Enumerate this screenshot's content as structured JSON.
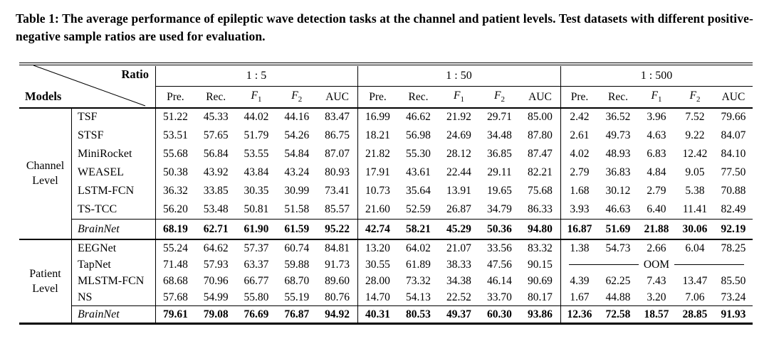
{
  "caption": "Table 1: The average performance of epileptic wave detection tasks at the channel and patient levels. Test datasets with different positive-negative sample ratios are used for evaluation.",
  "colors": {
    "text": "#000000",
    "background": "#ffffff"
  },
  "header": {
    "corner_top_right": "Ratio",
    "corner_bottom_left": "Models",
    "ratio_groups": [
      "1 : 5",
      "1 : 50",
      "1 : 500"
    ],
    "metrics": [
      {
        "text": "Pre."
      },
      {
        "text": "Rec."
      },
      {
        "text": "F",
        "sub": "1",
        "italic": true
      },
      {
        "text": "F",
        "sub": "2",
        "italic": true
      },
      {
        "text": "AUC"
      }
    ]
  },
  "table": {
    "oom_label": "OOM",
    "sections": [
      {
        "level_lines": [
          "Channel",
          "Level"
        ],
        "rows": [
          {
            "model": "TSF",
            "values": [
              "51.22",
              "45.33",
              "44.02",
              "44.16",
              "83.47",
              "16.99",
              "46.62",
              "21.92",
              "29.71",
              "85.00",
              "2.42",
              "36.52",
              "3.96",
              "7.52",
              "79.66"
            ]
          },
          {
            "model": "STSF",
            "values": [
              "53.51",
              "57.65",
              "51.79",
              "54.26",
              "86.75",
              "18.21",
              "56.98",
              "24.69",
              "34.48",
              "87.80",
              "2.61",
              "49.73",
              "4.63",
              "9.22",
              "84.07"
            ]
          },
          {
            "model": "MiniRocket",
            "values": [
              "55.68",
              "56.84",
              "53.55",
              "54.84",
              "87.07",
              "21.82",
              "55.30",
              "28.12",
              "36.85",
              "87.47",
              "4.02",
              "48.93",
              "6.83",
              "12.42",
              "84.10"
            ]
          },
          {
            "model": "WEASEL",
            "values": [
              "50.38",
              "43.92",
              "43.84",
              "43.24",
              "80.93",
              "17.91",
              "43.61",
              "22.44",
              "29.11",
              "82.21",
              "2.79",
              "36.83",
              "4.84",
              "9.05",
              "77.50"
            ]
          },
          {
            "model": "LSTM-FCN",
            "values": [
              "36.32",
              "33.85",
              "30.35",
              "30.99",
              "73.41",
              "10.73",
              "35.64",
              "13.91",
              "19.65",
              "75.68",
              "1.68",
              "30.12",
              "2.79",
              "5.38",
              "70.88"
            ]
          },
          {
            "model": "TS-TCC",
            "values": [
              "56.20",
              "53.48",
              "50.81",
              "51.58",
              "85.57",
              "21.60",
              "52.59",
              "26.87",
              "34.79",
              "86.33",
              "3.93",
              "46.63",
              "6.40",
              "11.41",
              "82.49"
            ]
          }
        ],
        "highlight": {
          "model": "BrainNet",
          "values": [
            "68.19",
            "62.71",
            "61.90",
            "61.59",
            "95.22",
            "42.74",
            "58.21",
            "45.29",
            "50.36",
            "94.80",
            "16.87",
            "51.69",
            "21.88",
            "30.06",
            "92.19"
          ]
        }
      },
      {
        "level_lines": [
          "Patient",
          "Level"
        ],
        "rows": [
          {
            "model": "EEGNet",
            "values": [
              "55.24",
              "64.62",
              "57.37",
              "60.74",
              "84.81",
              "13.20",
              "64.02",
              "21.07",
              "33.56",
              "83.32",
              "1.38",
              "54.73",
              "2.66",
              "6.04",
              "78.25"
            ]
          },
          {
            "model": "TapNet",
            "values": [
              "71.48",
              "57.93",
              "63.37",
              "59.88",
              "91.73",
              "30.55",
              "61.89",
              "38.33",
              "47.56",
              "90.15"
            ],
            "oom_group3": true
          },
          {
            "model": "MLSTM-FCN",
            "values": [
              "68.68",
              "70.96",
              "66.77",
              "68.70",
              "89.60",
              "28.00",
              "73.32",
              "34.38",
              "46.14",
              "90.69",
              "4.39",
              "62.25",
              "7.43",
              "13.47",
              "85.50"
            ]
          },
          {
            "model": "NS",
            "values": [
              "57.68",
              "54.99",
              "55.80",
              "55.19",
              "80.76",
              "14.70",
              "54.13",
              "22.52",
              "33.70",
              "80.17",
              "1.67",
              "44.88",
              "3.20",
              "7.06",
              "73.24"
            ]
          }
        ],
        "highlight": {
          "model": "BrainNet",
          "values": [
            "79.61",
            "79.08",
            "76.69",
            "76.87",
            "94.92",
            "40.31",
            "80.53",
            "49.37",
            "60.30",
            "93.86",
            "12.36",
            "72.58",
            "18.57",
            "28.85",
            "91.93"
          ]
        }
      }
    ]
  }
}
